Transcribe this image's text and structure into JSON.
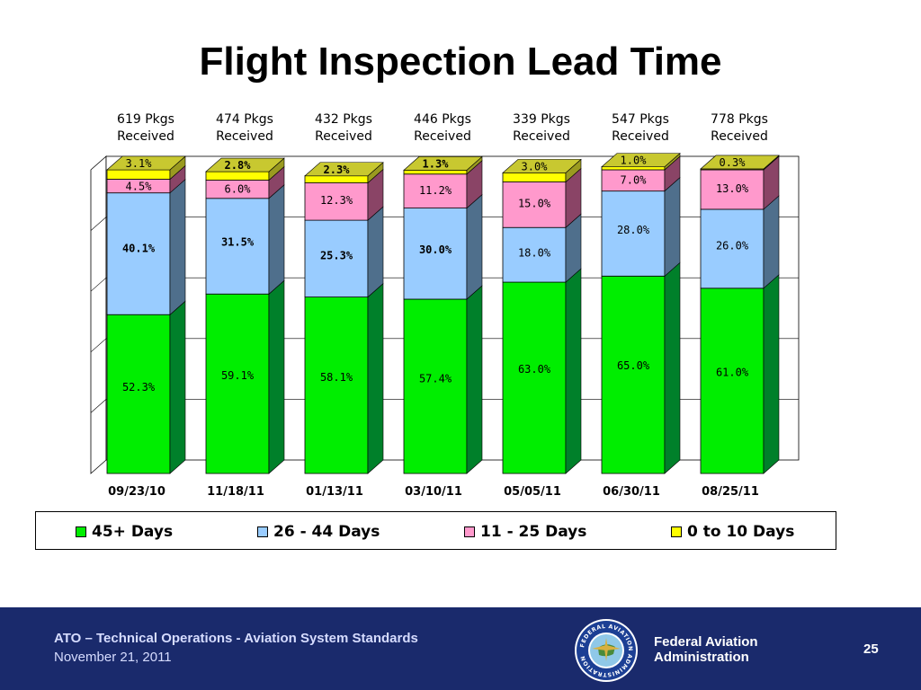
{
  "slide": {
    "title": "Flight Inspection Lead Time",
    "page_number": "25"
  },
  "footer": {
    "org_line": "ATO – Technical Operations - Aviation System Standards",
    "date": "November 21, 2011",
    "agency_line1": "Federal Aviation",
    "agency_line2": "Administration",
    "seal_text": "FEDERAL AVIATION ADMINISTRATION"
  },
  "colors": {
    "days_45_plus": "#00ee00",
    "days_26_44": "#99ccff",
    "days_11_25": "#ff99cc",
    "days_0_10": "#ffff00",
    "footer_bg": "#1a2a6c"
  },
  "chart_data": {
    "type": "bar",
    "stacked": true,
    "percent_stacked": true,
    "three_d": true,
    "categories": [
      "09/23/10",
      "11/18/11",
      "01/13/11",
      "03/10/11",
      "05/05/11",
      "06/30/11",
      "08/25/11"
    ],
    "package_labels": [
      [
        "619 Pkgs",
        "Received"
      ],
      [
        "474 Pkgs",
        "Received"
      ],
      [
        "432 Pkgs",
        "Received"
      ],
      [
        "446 Pkgs",
        "Received"
      ],
      [
        "339 Pkgs",
        "Received"
      ],
      [
        "547 Pkgs",
        "Received"
      ],
      [
        "778 Pkgs",
        "Received"
      ]
    ],
    "series": [
      {
        "name": "45+ Days",
        "values": [
          52.3,
          59.1,
          58.1,
          57.4,
          63.0,
          65.0,
          61.0
        ],
        "labels": [
          "52.3%",
          "59.1%",
          "58.1%",
          "57.4%",
          "63.0%",
          "65.0%",
          "61.0%"
        ]
      },
      {
        "name": "26 - 44 Days",
        "values": [
          40.1,
          31.5,
          25.3,
          30.0,
          18.0,
          28.0,
          26.0
        ],
        "labels": [
          "40.1%",
          "31.5%",
          "25.3%",
          "30.0%",
          "18.0%",
          "28.0%",
          "26.0%"
        ]
      },
      {
        "name": "11 - 25 Days",
        "values": [
          4.5,
          6.0,
          12.3,
          11.2,
          15.0,
          7.0,
          13.0
        ],
        "labels": [
          "4.5%",
          "6.0%",
          "12.3%",
          "11.2%",
          "15.0%",
          "7.0%",
          "13.0%"
        ]
      },
      {
        "name": "0 to 10 Days",
        "values": [
          3.1,
          2.8,
          2.3,
          1.3,
          3.0,
          1.0,
          0.3
        ],
        "labels": [
          "3.1%",
          "2.8%",
          "2.3%",
          "1.3%",
          "3.0%",
          "1.0%",
          "0.3%"
        ]
      }
    ],
    "ylim": [
      0,
      100
    ],
    "grid": true,
    "legend_position": "bottom"
  }
}
